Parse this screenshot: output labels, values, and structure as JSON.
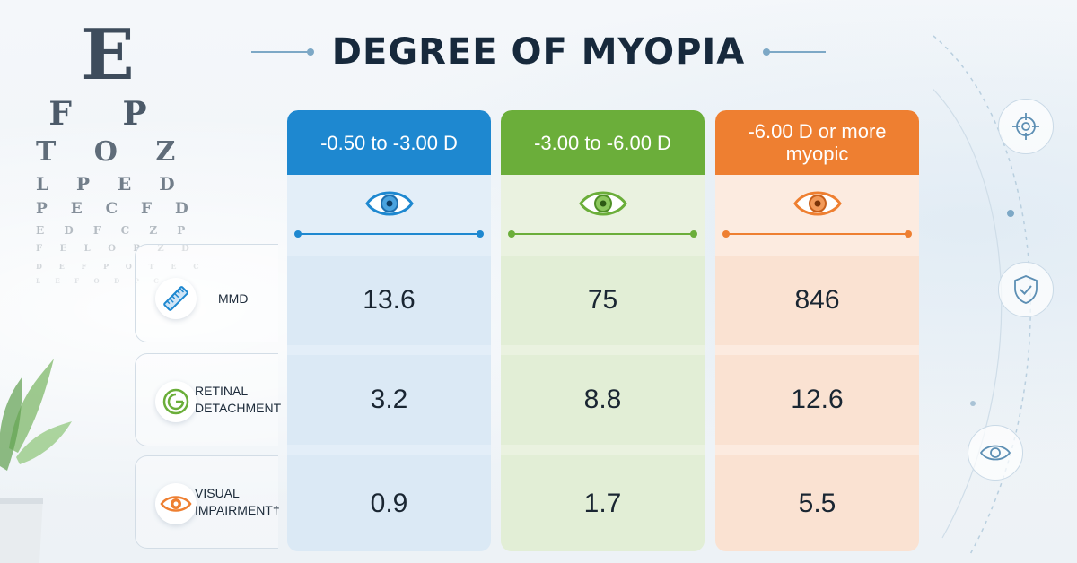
{
  "title": "DEGREE OF MYOPIA",
  "eye_chart": {
    "rows": [
      "E",
      "F P",
      "T O Z",
      "L P E D",
      "P E C F D",
      "E D F C Z P",
      "F E L O P Z D",
      "D E F P O T E C",
      "L E F O D P C T"
    ]
  },
  "columns": [
    {
      "header": "-0.50 to -3.00 D",
      "color": "#1e88d0",
      "icon": "eye-icon"
    },
    {
      "header": "-3.00 to -6.00 D",
      "color": "#6bae3a",
      "icon": "eye-icon"
    },
    {
      "header": "-6.00 D or more myopic",
      "color": "#ee7f31",
      "icon": "eye-icon"
    }
  ],
  "rows": [
    {
      "label": "MMD",
      "icon": "ruler-icon",
      "values": [
        "13.6",
        "75",
        "846"
      ]
    },
    {
      "label": "RETINAL DETACHMENT",
      "icon": "retina-icon",
      "values": [
        "3.2",
        "8.8",
        "12.6"
      ]
    },
    {
      "label": "VISUAL IMPAIRMENT†",
      "icon": "eye-icon",
      "values": [
        "0.9",
        "1.7",
        "5.5"
      ]
    }
  ],
  "right_icons": [
    "target-icon",
    "shield-check-icon",
    "eye-icon"
  ]
}
